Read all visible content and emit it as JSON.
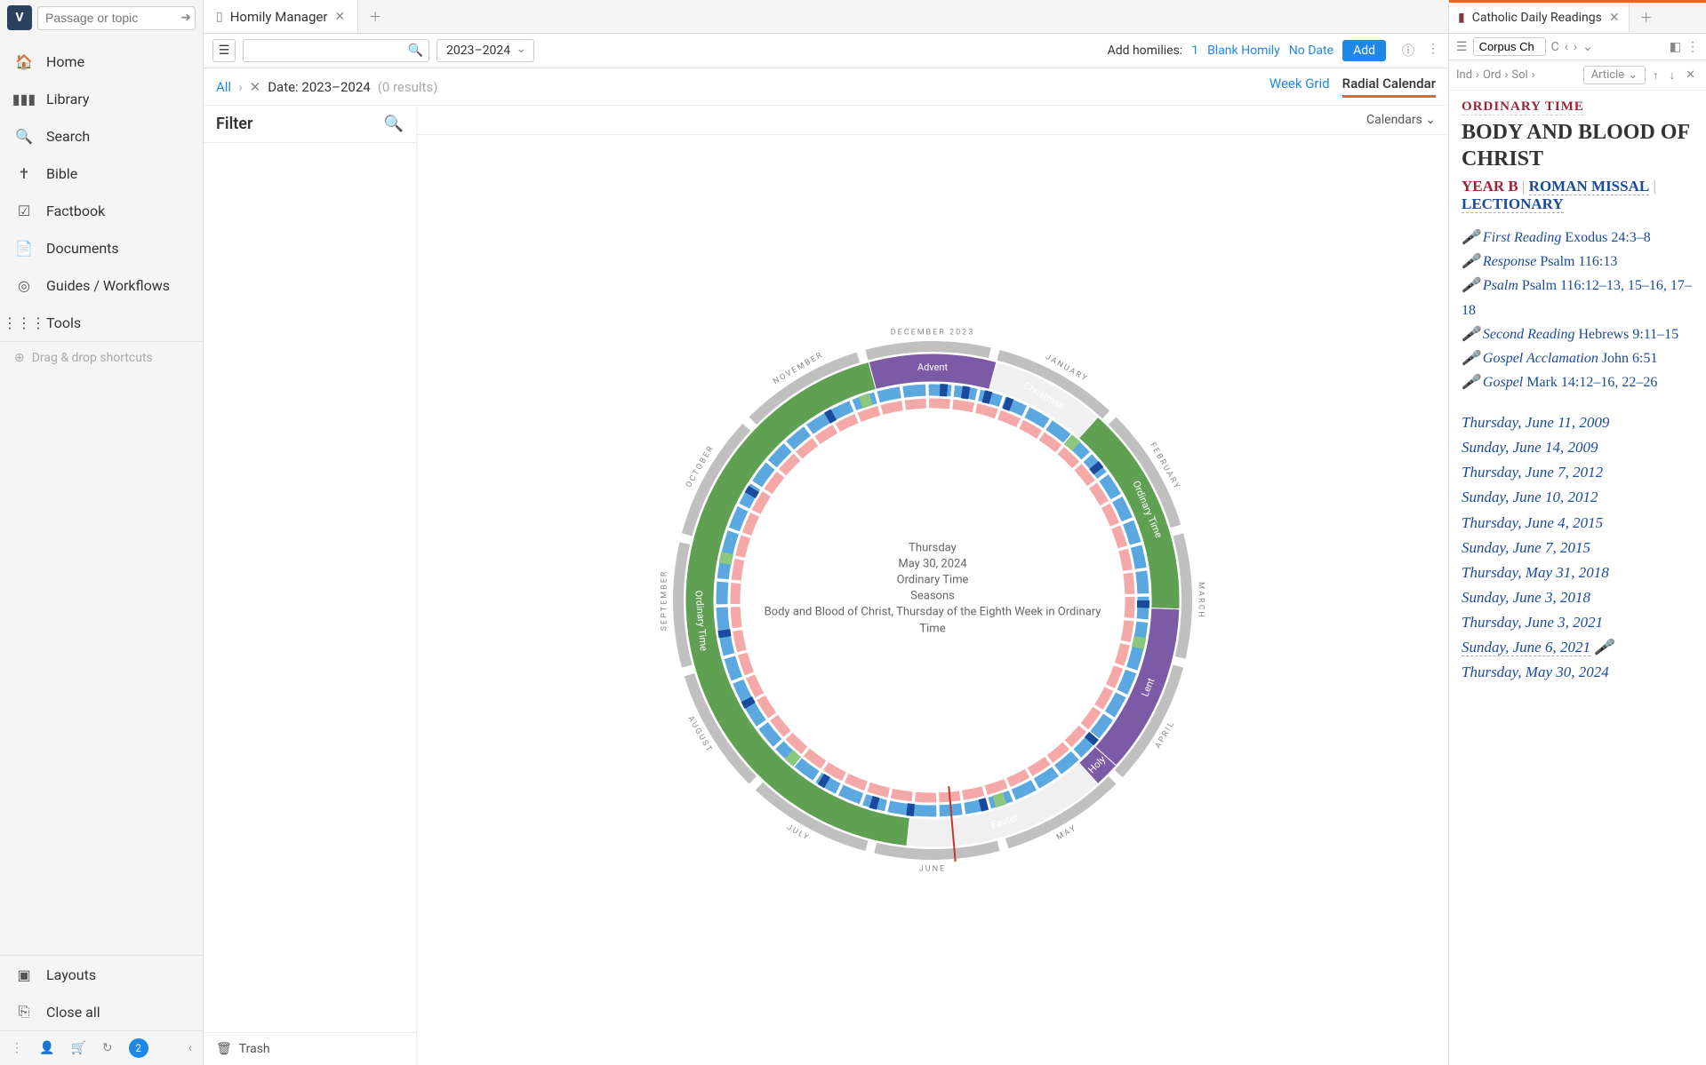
{
  "sidebar": {
    "search_placeholder": "Passage or topic",
    "items": [
      {
        "icon": "home",
        "label": "Home"
      },
      {
        "icon": "library",
        "label": "Library"
      },
      {
        "icon": "search",
        "label": "Search"
      },
      {
        "icon": "bible",
        "label": "Bible"
      },
      {
        "icon": "factbook",
        "label": "Factbook"
      },
      {
        "icon": "documents",
        "label": "Documents"
      },
      {
        "icon": "guides",
        "label": "Guides / Workflows"
      },
      {
        "icon": "tools",
        "label": "Tools"
      }
    ],
    "drag_drop": "Drag & drop shortcuts",
    "layouts": "Layouts",
    "close_all": "Close all",
    "badge": "2"
  },
  "main": {
    "tab_title": "Homily Manager",
    "year_select": "2023–2024",
    "add_homilies_label": "Add homilies:",
    "count": "1",
    "blank_homily": "Blank Homily",
    "no_date": "No Date",
    "add_btn": "Add",
    "crumb_all": "All",
    "crumb_date": "Date: 2023–2024",
    "crumb_results": "(0 results)",
    "week_grid": "Week Grid",
    "radial_calendar": "Radial Calendar",
    "filter_title": "Filter",
    "calendars_label": "Calendars",
    "trash": "Trash"
  },
  "radial": {
    "months": [
      "DECEMBER 2023",
      "JANUARY",
      "FEBRUARY",
      "MARCH",
      "APRIL",
      "MAY",
      "JUNE",
      "JULY",
      "AUGUST",
      "SEPTEMBER",
      "OCTOBER",
      "NOVEMBER"
    ],
    "seasons": [
      {
        "name": "Advent",
        "color": "#7b5aa6",
        "start": -15,
        "end": 15
      },
      {
        "name": "Christmas",
        "color": "#f0f0f0",
        "text": "#888",
        "start": 15,
        "end": 42
      },
      {
        "name": "Ordinary Time",
        "color": "#5fa052",
        "start": 42,
        "end": 92,
        "rot": 67
      },
      {
        "name": "Lent",
        "color": "#7b5aa6",
        "start": 92,
        "end": 132,
        "rot": 112
      },
      {
        "name": "Holy",
        "color": "#7b5aa6",
        "start": 132,
        "end": 138
      },
      {
        "name": "Easter",
        "color": "#f0f0f0",
        "text": "#888",
        "start": 138,
        "end": 186
      },
      {
        "name": "Ordinary Time",
        "color": "#5fa052",
        "start": 186,
        "end": 345,
        "rot": 265
      }
    ],
    "ring_outer_color": "#c0c0c0",
    "ring_blue": "#5ba8e0",
    "ring_pink": "#f4a8a8",
    "ring_green_tick": "#8bc77d",
    "dark_tick": "#1a4a9c",
    "center": {
      "l1": "Thursday",
      "l2": "May 30, 2024",
      "l3": "Ordinary Time",
      "l4": "Seasons",
      "l5": "Body and Blood of Christ, Thursday of the Eighth Week in Ordinary Time"
    }
  },
  "reader": {
    "tab_title": "Catholic Daily Readings",
    "input_value": "Corpus Ch",
    "crumbs": [
      "Ind",
      "Ord",
      "Sol"
    ],
    "view_mode": "Article",
    "ord_time": "ORDINARY TIME",
    "feast": "BODY AND BLOOD OF CHRIST",
    "year": "YEAR B",
    "missal": "ROMAN MISSAL",
    "lectionary": "LECTIONARY",
    "readings": [
      {
        "label": "First Reading",
        "ref": "Exodus 24:3–8"
      },
      {
        "label": "Response",
        "ref": "Psalm 116:13"
      },
      {
        "label": "Psalm",
        "ref": "Psalm 116:12–13, 15–16, 17–18"
      },
      {
        "label": "Second Reading",
        "ref": "Hebrews 9:11–15"
      },
      {
        "label": "Gospel Acclamation",
        "ref": "John 6:51"
      },
      {
        "label": "Gospel",
        "ref": "Mark 14:12–16, 22–26"
      }
    ],
    "dates": [
      "Thursday, June 11, 2009",
      "Sunday, June 14, 2009",
      "Thursday, June 7, 2012",
      "Sunday, June 10, 2012",
      "Thursday, June 4, 2015",
      "Sunday, June 7, 2015",
      "Thursday, May 31, 2018",
      "Sunday, June 3, 2018",
      "Thursday, June 3, 2021",
      "Sunday, June 6, 2021",
      "Thursday, May 30, 2024"
    ]
  }
}
